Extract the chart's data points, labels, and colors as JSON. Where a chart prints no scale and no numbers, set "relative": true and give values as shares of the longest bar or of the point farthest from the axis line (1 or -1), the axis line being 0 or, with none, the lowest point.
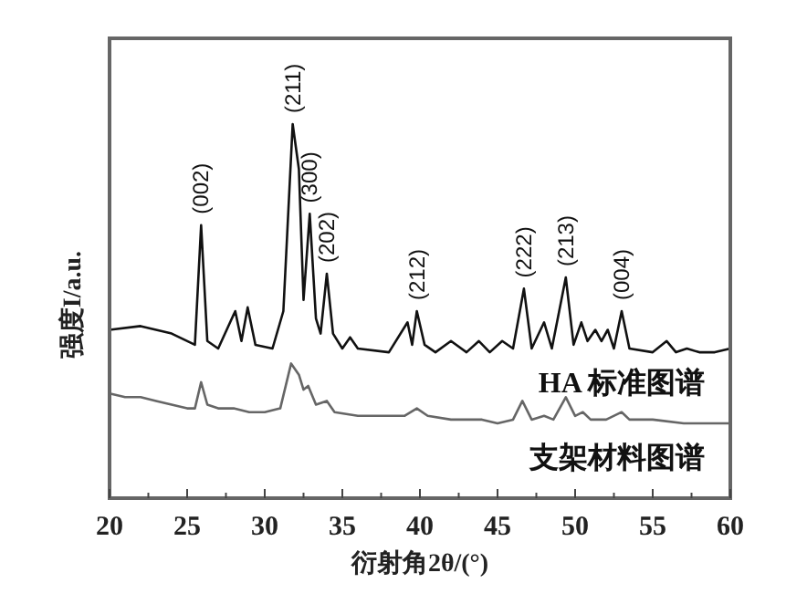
{
  "chart_data": {
    "type": "line",
    "relative": true,
    "xlabel": "衍射角2θ/(°)",
    "ylabel": "强度I/a.u.",
    "xlim": [
      20,
      60
    ],
    "xticks": [
      20,
      {
        "value": 22.5,
        "label": null
      },
      25,
      {
        "value": 27.5,
        "label": null
      },
      30,
      {
        "value": 32.5,
        "label": null
      },
      35,
      {
        "value": 37.5,
        "label": null
      },
      40,
      {
        "value": 42.5,
        "label": null
      },
      45,
      {
        "value": 47.5,
        "label": null
      },
      50,
      {
        "value": 52.5,
        "label": null
      },
      55,
      {
        "value": 57.5,
        "label": null
      },
      60
    ],
    "grid": false,
    "marker": "none",
    "line_style": "solid",
    "series": [
      {
        "name": "HA 标准图谱",
        "color": "#111111",
        "x": [
          20,
          22,
          24,
          25.5,
          25.9,
          26.3,
          27,
          28.1,
          28.5,
          28.9,
          29.4,
          30.5,
          31.2,
          31.8,
          32.2,
          32.5,
          32.9,
          33.3,
          33.6,
          34,
          34.4,
          35,
          35.5,
          36,
          38,
          39.2,
          39.5,
          39.8,
          40.3,
          41,
          42,
          43,
          43.8,
          44.5,
          45.3,
          46,
          46.7,
          47.2,
          48,
          48.5,
          49.4,
          49.9,
          50.4,
          50.8,
          51.3,
          51.7,
          52.1,
          52.5,
          53,
          53.5,
          55,
          55.9,
          56.5,
          57.2,
          58,
          59,
          60
        ],
        "values": [
          0.45,
          0.46,
          0.44,
          0.41,
          0.73,
          0.42,
          0.4,
          0.5,
          0.42,
          0.51,
          0.41,
          0.4,
          0.5,
          1,
          0.88,
          0.53,
          0.76,
          0.48,
          0.44,
          0.6,
          0.44,
          0.4,
          0.43,
          0.4,
          0.39,
          0.47,
          0.41,
          0.5,
          0.41,
          0.39,
          0.42,
          0.39,
          0.42,
          0.39,
          0.42,
          0.4,
          0.56,
          0.4,
          0.47,
          0.4,
          0.59,
          0.41,
          0.47,
          0.42,
          0.45,
          0.42,
          0.45,
          0.4,
          0.5,
          0.4,
          0.39,
          0.42,
          0.39,
          0.4,
          0.39,
          0.39,
          0.4
        ]
      },
      {
        "name": "支架材料图谱",
        "color": "#666666",
        "x": [
          20,
          21,
          22,
          23,
          24,
          25,
          25.5,
          25.9,
          26.3,
          27,
          28,
          29,
          30,
          31,
          31.7,
          32.2,
          32.5,
          32.8,
          33.3,
          34,
          34.5,
          36,
          38,
          39,
          39.8,
          40.5,
          42,
          44,
          45,
          46,
          46.6,
          47.2,
          48,
          48.6,
          49.4,
          50,
          50.5,
          51,
          52,
          53,
          53.5,
          55,
          57,
          58,
          60
        ],
        "values": [
          0.28,
          0.27,
          0.27,
          0.26,
          0.25,
          0.24,
          0.24,
          0.31,
          0.25,
          0.24,
          0.24,
          0.23,
          0.23,
          0.24,
          0.36,
          0.33,
          0.29,
          0.3,
          0.25,
          0.26,
          0.23,
          0.22,
          0.22,
          0.22,
          0.24,
          0.22,
          0.21,
          0.21,
          0.2,
          0.21,
          0.26,
          0.21,
          0.22,
          0.21,
          0.27,
          0.22,
          0.23,
          0.21,
          0.21,
          0.23,
          0.21,
          0.21,
          0.2,
          0.2,
          0.2
        ]
      }
    ],
    "annotations": [
      {
        "text": "(002)",
        "x": 25.9,
        "y": 0.73
      },
      {
        "text": "(211)",
        "x": 31.8,
        "y": 1
      },
      {
        "text": "(300)",
        "x": 32.9,
        "y": 0.76
      },
      {
        "text": "(202)",
        "x": 34,
        "y": 0.6
      },
      {
        "text": "(212)",
        "x": 39.8,
        "y": 0.5
      },
      {
        "text": "(222)",
        "x": 46.7,
        "y": 0.56
      },
      {
        "text": "(213)",
        "x": 49.4,
        "y": 0.59
      },
      {
        "text": "(004)",
        "x": 53,
        "y": 0.5
      }
    ]
  }
}
